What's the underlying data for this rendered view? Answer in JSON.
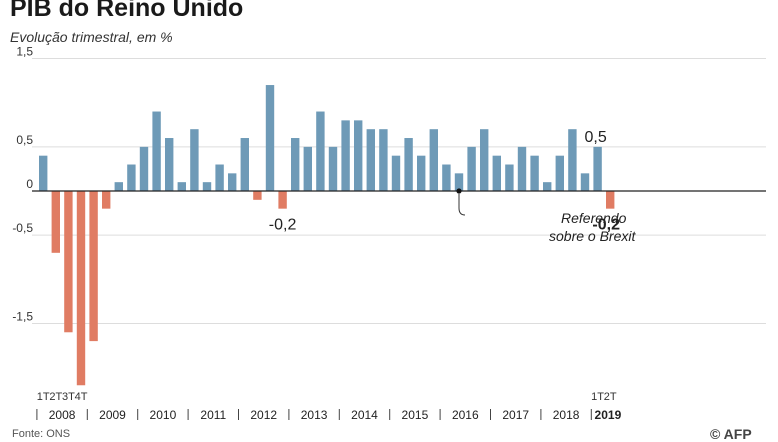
{
  "header": {
    "title": "PIB do Reino Unido",
    "subtitle": "Evolução trimestral, em %"
  },
  "footer": {
    "source": "Fonte: ONS",
    "logo_text": "© AFP"
  },
  "chart_data": {
    "type": "bar",
    "title": "PIB do Reino Unido",
    "subtitle": "Evolução trimestral, em %",
    "xlabel": "",
    "ylabel": "",
    "ylim": [
      -2.2,
      1.5
    ],
    "grid": true,
    "yticks": [
      {
        "value": 1.5,
        "label": "1,5"
      },
      {
        "value": 0.5,
        "label": "0,5"
      },
      {
        "value": 0,
        "label": "0"
      },
      {
        "value": -0.5,
        "label": "-0,5"
      },
      {
        "value": -1.5,
        "label": "-1,5"
      }
    ],
    "years": [
      "2008",
      "2009",
      "2010",
      "2011",
      "2012",
      "2013",
      "2014",
      "2015",
      "2016",
      "2017",
      "2018",
      "2019"
    ],
    "quarter_labels_2008": [
      "1T",
      "2T",
      "3T",
      "4T"
    ],
    "quarter_labels_2019": [
      "1T",
      "2T"
    ],
    "values": [
      0.4,
      -0.7,
      -1.6,
      -2.2,
      -1.7,
      -0.2,
      0.1,
      0.3,
      0.5,
      0.9,
      0.6,
      0.1,
      0.7,
      0.1,
      0.3,
      0.2,
      0.6,
      -0.1,
      1.2,
      -0.2,
      0.6,
      0.5,
      0.9,
      0.5,
      0.8,
      0.8,
      0.7,
      0.7,
      0.4,
      0.6,
      0.4,
      0.7,
      0.3,
      0.2,
      0.5,
      0.7,
      0.4,
      0.3,
      0.5,
      0.4,
      0.1,
      0.4,
      0.7,
      0.2,
      0.5,
      -0.2
    ],
    "colors": {
      "positive": "#6e9ab7",
      "negative": "#e07c63",
      "grid": "#dddddd",
      "axis": "#222222"
    },
    "annotations": [
      {
        "text": "-0,2",
        "bar_index": 19,
        "bold": false
      },
      {
        "text": "0,5",
        "bar_index": 44,
        "bold": false
      },
      {
        "text": "-0,2",
        "bar_index": 45,
        "bold": true
      },
      {
        "text_lines": [
          "Referendo",
          "sobre o Brexit"
        ],
        "bar_index": 33
      }
    ],
    "highlight_year": "2019"
  }
}
